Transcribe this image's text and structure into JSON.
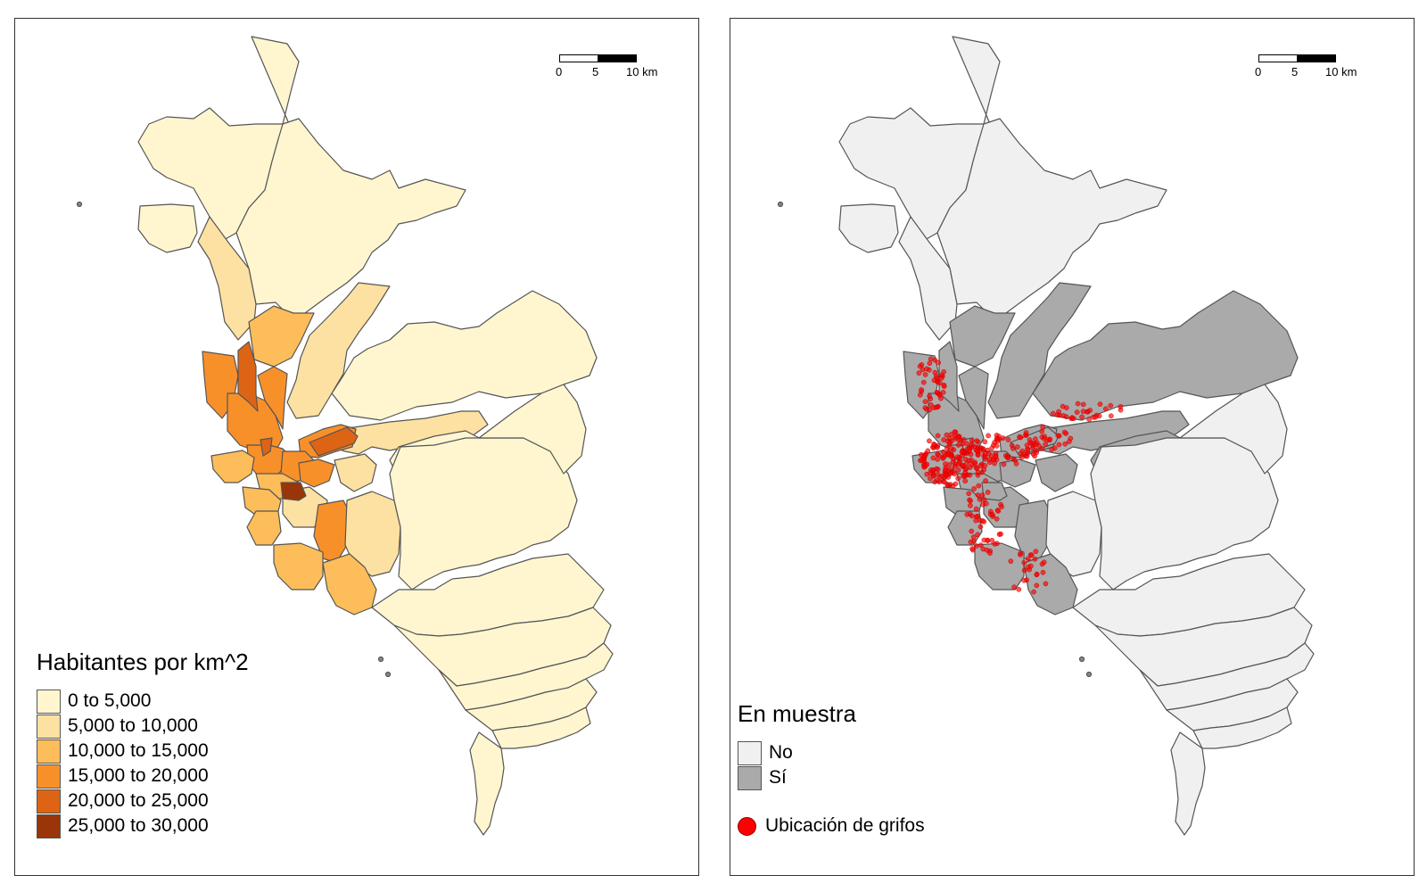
{
  "left_map": {
    "title": "Habitantes por km^2",
    "legend": [
      {
        "label": "0 to 5,000",
        "color": "#FFF6D0"
      },
      {
        "label": "5,000 to 10,000",
        "color": "#FDE1A2"
      },
      {
        "label": "10,000 to 15,000",
        "color": "#FCBD5A"
      },
      {
        "label": "15,000 to 20,000",
        "color": "#F8902A"
      },
      {
        "label": "20,000 to 25,000",
        "color": "#DD6414"
      },
      {
        "label": "25,000 to 30,000",
        "color": "#993508"
      }
    ]
  },
  "right_map": {
    "title": "En muestra",
    "legend": [
      {
        "label": "No",
        "color": "#F0F0F0"
      },
      {
        "label": "Sí",
        "color": "#AAAAAA"
      }
    ],
    "point_label": "Ubicación de grifos",
    "point_color": "#FF0000"
  },
  "scale_bar": {
    "ticks": [
      "0",
      "5",
      "10 km"
    ]
  },
  "colors": {
    "border": "#555555",
    "frame": "#333333"
  }
}
